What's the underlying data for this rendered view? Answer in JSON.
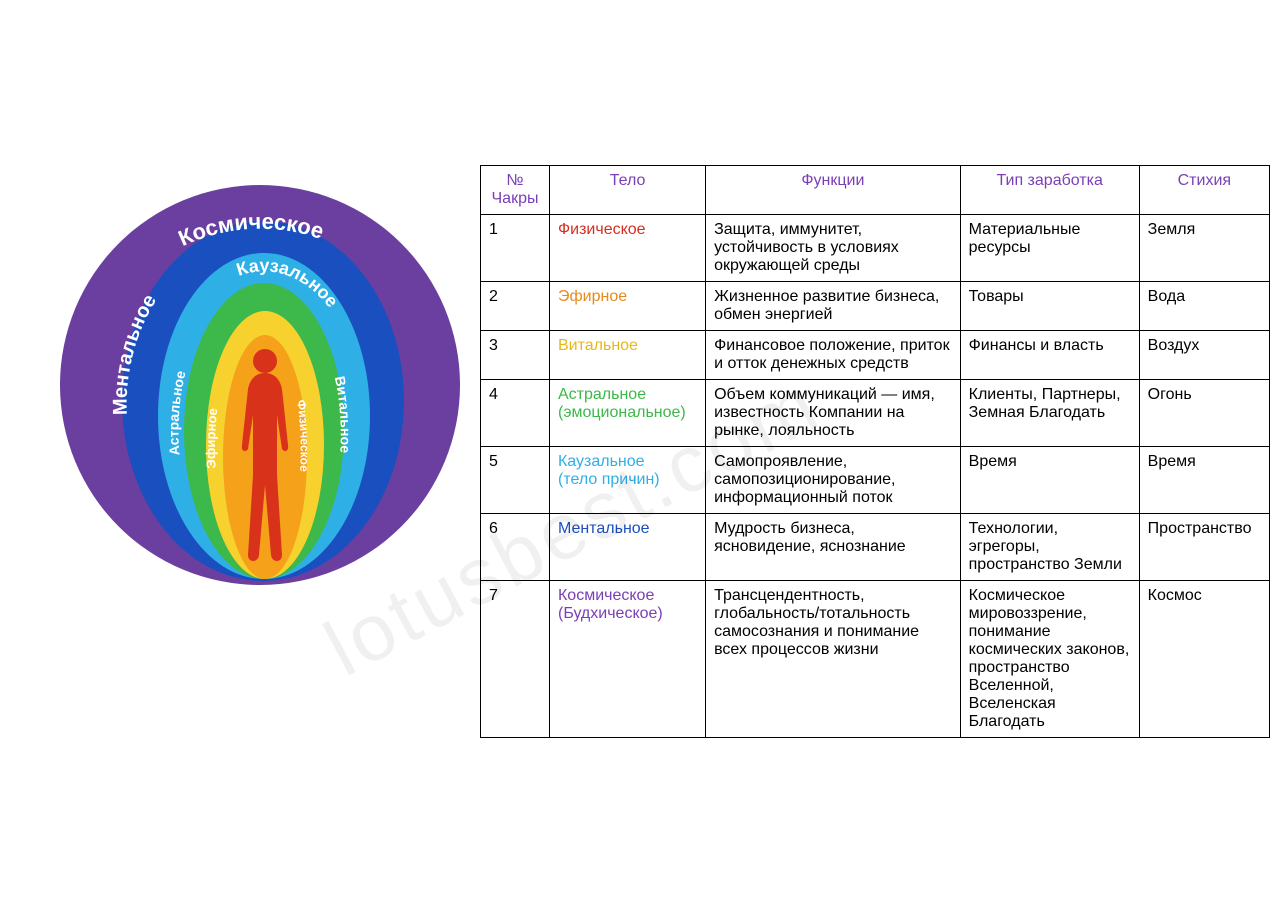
{
  "diagram": {
    "layers": [
      {
        "id": 7,
        "label": "Космическое",
        "color": "#6a3fa0",
        "label_fontsize": 22
      },
      {
        "id": 6,
        "label": "Ментальное",
        "color": "#1a4fbf",
        "label_fontsize": 20
      },
      {
        "id": 5,
        "label": "Каузальное",
        "color": "#2eb0e6",
        "label_fontsize": 18
      },
      {
        "id": 4,
        "label": "Астральное",
        "color": "#3db84a",
        "label_fontsize": 14
      },
      {
        "id": 3,
        "label": "Витальное",
        "color": "#f7d22e",
        "label_fontsize": 14
      },
      {
        "id": 2,
        "label": "Эфирное",
        "color": "#f5a11a",
        "label_fontsize": 13
      },
      {
        "id": 1,
        "label": "Физическое",
        "color": "#e8401f",
        "label_fontsize": 12
      }
    ],
    "human_color": "#d8321a",
    "background": "#ffffff"
  },
  "table": {
    "header_color": "#7a3fb5",
    "border_color": "#000000",
    "columns": [
      {
        "key": "num",
        "label": "№ Чакры"
      },
      {
        "key": "body",
        "label": "Тело"
      },
      {
        "key": "func",
        "label": "Функции"
      },
      {
        "key": "earn",
        "label": "Тип заработка"
      },
      {
        "key": "elem",
        "label": "Стихия"
      }
    ],
    "rows": [
      {
        "num": "1",
        "body": "Физическое",
        "body_sub": "",
        "body_color": "#d62e1f",
        "func": "Защита, иммунитет, устойчивость в условиях окружающей среды",
        "earn": "Материальные ресурсы",
        "elem": "Земля"
      },
      {
        "num": "2",
        "body": "Эфирное",
        "body_sub": "",
        "body_color": "#e88a1a",
        "func": "Жизненное развитие бизнеса, обмен энергией",
        "earn": "Товары",
        "elem": "Вода"
      },
      {
        "num": "3",
        "body": "Витальное",
        "body_sub": "",
        "body_color": "#e6b815",
        "func": "Финансовое положение, приток и отток денежных средств",
        "earn": "Финансы и власть",
        "elem": "Воздух"
      },
      {
        "num": "4",
        "body": "Астральное",
        "body_sub": "(эмоциональное)",
        "body_color": "#3db84a",
        "func": "Объем коммуникаций — имя, известность Компании на рынке, лояльность",
        "earn": "Клиенты, Партнеры, Земная Благодать",
        "elem": "Огонь"
      },
      {
        "num": "5",
        "body": "Каузальное",
        "body_sub": "(тело причин)",
        "body_color": "#2eb0e6",
        "func": "Самопроявление, самопозиционирование, информационный поток",
        "earn": "Время",
        "elem": "Время"
      },
      {
        "num": "6",
        "body": "Ментальное",
        "body_sub": "",
        "body_color": "#1a4fbf",
        "func": "Мудрость бизнеса, ясновидение, яснознание",
        "earn": "Технологии, эгрегоры, пространство Земли",
        "elem": "Пространство"
      },
      {
        "num": "7",
        "body": "Космическое",
        "body_sub": "(Будхическое)",
        "body_color": "#7a3fb5",
        "func": "Трансцендентность, глобальность/тотальность самосознания и понимание всех процессов жизни",
        "earn": "Космическое мировоззрение, понимание космических законов, пространство Вселенной, Вселенская Благодать",
        "elem": "Космос"
      }
    ]
  },
  "watermark": "lotusbest.com"
}
